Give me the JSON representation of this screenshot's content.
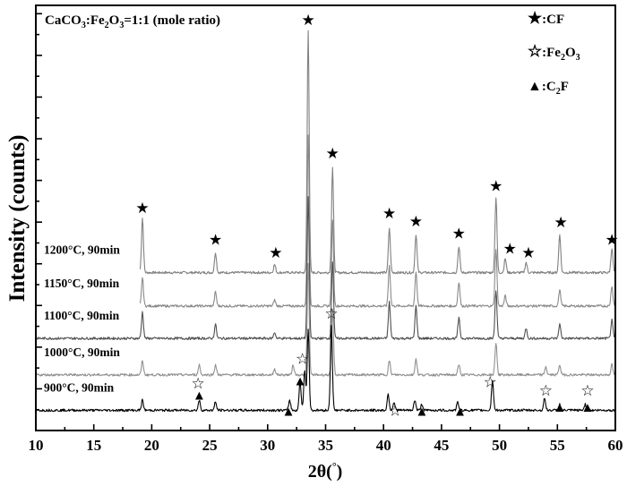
{
  "chart_data": {
    "type": "line",
    "title": "",
    "annotation_main": "CaCO",
    "annotation_sub1": "3",
    "annotation_mid": ":Fe",
    "annotation_sub2": "2",
    "annotation_o": "O",
    "annotation_sub3": "3",
    "annotation_tail": "=1:1 (mole ratio)",
    "xlabel_main": "2θ(",
    "xlabel_deg": "°",
    "xlabel_close": ")",
    "ylabel": "Intensity (counts)",
    "xlim": [
      10,
      60
    ],
    "x_ticks": [
      10,
      15,
      20,
      25,
      30,
      35,
      40,
      45,
      50,
      55,
      60
    ],
    "x_tick_labels": [
      "10",
      "15",
      "20",
      "25",
      "30",
      "35",
      "40",
      "45",
      "50",
      "55",
      "60"
    ],
    "y_ticks_count": 10,
    "legend": [
      {
        "symbol": "★",
        "label": "CF",
        "sub": "",
        "label2": ""
      },
      {
        "symbol": "☆",
        "label": "Fe",
        "sub": "2",
        "label2": "O",
        "sub2": "3"
      },
      {
        "symbol": "▲",
        "label": "C",
        "sub": "2",
        "label2": "F"
      }
    ],
    "legend_prefix": ":",
    "series": [
      {
        "name": "1200°C, 90min",
        "label_deg": "1200°C, 90min",
        "color": "#808080",
        "baseline": 0.78,
        "peaks": [
          [
            19.2,
            0.27
          ],
          [
            25.5,
            0.1
          ],
          [
            30.6,
            0.04
          ],
          [
            33.5,
            1.2
          ],
          [
            35.6,
            0.52
          ],
          [
            40.5,
            0.22
          ],
          [
            42.8,
            0.19
          ],
          [
            46.5,
            0.13
          ],
          [
            49.7,
            0.37
          ],
          [
            50.5,
            0.07
          ],
          [
            52.3,
            0.05
          ],
          [
            55.2,
            0.19
          ],
          [
            59.7,
            0.12
          ]
        ]
      },
      {
        "name": "1150°C, 90min",
        "label_deg": "1150°C, 90min",
        "color": "#8a8a8a",
        "baseline": 0.615,
        "peaks": [
          [
            19.2,
            0.14
          ],
          [
            25.5,
            0.07
          ],
          [
            30.6,
            0.03
          ],
          [
            33.5,
            0.85
          ],
          [
            35.6,
            0.42
          ],
          [
            40.5,
            0.2
          ],
          [
            42.8,
            0.17
          ],
          [
            46.5,
            0.12
          ],
          [
            49.7,
            0.28
          ],
          [
            50.5,
            0.05
          ],
          [
            55.2,
            0.08
          ],
          [
            59.7,
            0.1
          ]
        ]
      },
      {
        "name": "1100°C, 90min",
        "label_deg": "1100°C, 90min",
        "color": "#505050",
        "baseline": 0.455,
        "peaks": [
          [
            19.2,
            0.13
          ],
          [
            25.5,
            0.07
          ],
          [
            30.6,
            0.03
          ],
          [
            33.5,
            0.7
          ],
          [
            35.6,
            0.38
          ],
          [
            40.5,
            0.18
          ],
          [
            42.8,
            0.16
          ],
          [
            46.5,
            0.1
          ],
          [
            49.7,
            0.24
          ],
          [
            52.3,
            0.05
          ],
          [
            55.2,
            0.07
          ],
          [
            59.7,
            0.09
          ]
        ]
      },
      {
        "name": "1000°C, 90min",
        "label_deg": "1000°C, 90min",
        "color": "#909090",
        "baseline": 0.275,
        "peaks": [
          [
            19.2,
            0.07
          ],
          [
            24.1,
            0.05
          ],
          [
            25.5,
            0.05
          ],
          [
            30.6,
            0.03
          ],
          [
            32.2,
            0.05
          ],
          [
            33.5,
            0.55
          ],
          [
            35.6,
            0.32
          ],
          [
            40.5,
            0.07
          ],
          [
            42.8,
            0.08
          ],
          [
            46.5,
            0.05
          ],
          [
            49.7,
            0.16
          ],
          [
            54.0,
            0.04
          ],
          [
            55.2,
            0.05
          ],
          [
            59.7,
            0.05
          ]
        ]
      },
      {
        "name": "900°C, 90min",
        "label_deg": "900°C, 90min",
        "color": "#000000",
        "baseline": 0.1,
        "peaks": [
          [
            19.2,
            0.05
          ],
          [
            24.1,
            0.05
          ],
          [
            25.5,
            0.04
          ],
          [
            31.9,
            0.05
          ],
          [
            32.8,
            0.14
          ],
          [
            33.2,
            0.2
          ],
          [
            33.5,
            0.4
          ],
          [
            35.5,
            0.42
          ],
          [
            40.4,
            0.08
          ],
          [
            40.9,
            0.04
          ],
          [
            42.7,
            0.05
          ],
          [
            43.3,
            0.03
          ],
          [
            46.4,
            0.04
          ],
          [
            49.4,
            0.15
          ],
          [
            53.9,
            0.06
          ],
          [
            55.2,
            0.03
          ],
          [
            57.4,
            0.03
          ]
        ]
      }
    ],
    "markers": [
      {
        "kind": "CF",
        "x": 19.2,
        "y": 1.1
      },
      {
        "kind": "CF",
        "x": 25.5,
        "y": 0.945
      },
      {
        "kind": "CF",
        "x": 30.7,
        "y": 0.88
      },
      {
        "kind": "CF",
        "x": 33.5,
        "y": 2.03
      },
      {
        "kind": "CF",
        "x": 35.6,
        "y": 1.37
      },
      {
        "kind": "CF",
        "x": 40.5,
        "y": 1.075
      },
      {
        "kind": "CF",
        "x": 42.8,
        "y": 1.035
      },
      {
        "kind": "CF",
        "x": 46.5,
        "y": 0.975
      },
      {
        "kind": "CF",
        "x": 49.7,
        "y": 1.21
      },
      {
        "kind": "CF",
        "x": 50.9,
        "y": 0.9
      },
      {
        "kind": "CF",
        "x": 52.5,
        "y": 0.88
      },
      {
        "kind": "CF",
        "x": 55.3,
        "y": 1.03
      },
      {
        "kind": "CF",
        "x": 59.7,
        "y": 0.945
      },
      {
        "kind": "Fe2O3",
        "x": 24.0,
        "y": 0.235
      },
      {
        "kind": "Fe2O3",
        "x": 33.0,
        "y": 0.355
      },
      {
        "kind": "Fe2O3",
        "x": 35.5,
        "y": 0.58
      },
      {
        "kind": "Fe2O3",
        "x": 41.0,
        "y": 0.1
      },
      {
        "kind": "Fe2O3",
        "x": 49.2,
        "y": 0.24
      },
      {
        "kind": "Fe2O3",
        "x": 54.0,
        "y": 0.2
      },
      {
        "kind": "Fe2O3",
        "x": 57.6,
        "y": 0.2
      },
      {
        "kind": "C2F",
        "x": 24.1,
        "y": 0.18
      },
      {
        "kind": "C2F",
        "x": 31.8,
        "y": 0.1
      },
      {
        "kind": "C2F",
        "x": 32.8,
        "y": 0.25
      },
      {
        "kind": "C2F",
        "x": 43.3,
        "y": 0.1
      },
      {
        "kind": "C2F",
        "x": 46.6,
        "y": 0.1
      },
      {
        "kind": "C2F",
        "x": 55.2,
        "y": 0.12
      },
      {
        "kind": "C2F",
        "x": 57.6,
        "y": 0.12
      }
    ],
    "ylim": [
      0,
      2.1
    ],
    "grid": false,
    "legend_position": "top-right"
  }
}
